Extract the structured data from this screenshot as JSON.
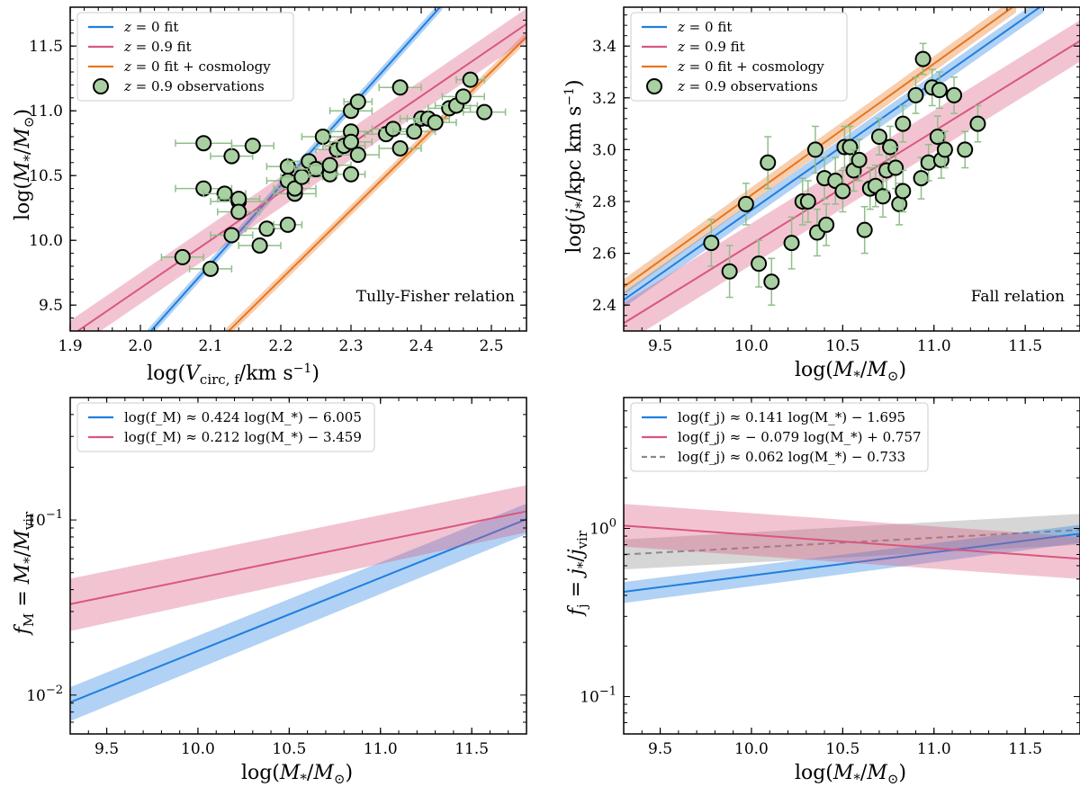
{
  "colors": {
    "blue": "#1f7fe0",
    "pink": "#d9577f",
    "orange": "#e8761c",
    "gray": "#8a8a8a",
    "marker_face": "#a9d0a2",
    "errorbar": "#8fbf8a"
  },
  "chart_data": [
    {
      "id": "tf",
      "type": "scatter",
      "title": "",
      "annotation": "Tully-Fisher relation",
      "xlabel": "log(V_circ,f / km s^-1)",
      "ylabel": "log(M_* / M_sun)",
      "xlim": [
        1.9,
        2.55
      ],
      "ylim": [
        9.3,
        11.8
      ],
      "yscale": "linear",
      "xticks": [
        1.9,
        2.0,
        2.1,
        2.2,
        2.3,
        2.4,
        2.5
      ],
      "xtick_labels": [
        "1.9",
        "2.0",
        "2.1",
        "2.2",
        "2.3",
        "2.4",
        "2.5"
      ],
      "yticks": [
        9.5,
        10.0,
        10.5,
        11.0,
        11.5
      ],
      "ytick_labels": [
        "9.5",
        "10.0",
        "10.5",
        "11.0",
        "11.5"
      ],
      "legend_position": "top-left",
      "legend": [
        {
          "type": "line",
          "color": "blue",
          "label": "z = 0 fit"
        },
        {
          "type": "line",
          "color": "pink",
          "label": "z = 0.9 fit"
        },
        {
          "type": "line",
          "color": "orange",
          "label": "z = 0 fit + cosmology"
        },
        {
          "type": "marker",
          "label": "z = 0.9 observations"
        }
      ],
      "series": [
        {
          "name": "z = 0 fit + cosmology",
          "color": "orange",
          "x": [
            2.12,
            2.55
          ],
          "y": [
            9.27,
            11.57
          ],
          "band": 0.04
        },
        {
          "name": "z = 0 fit",
          "color": "blue",
          "x": [
            2.01,
            2.43
          ],
          "y": [
            9.27,
            11.82
          ],
          "band": 0.04
        },
        {
          "name": "z = 0.9 fit",
          "color": "pink",
          "x": [
            1.9,
            2.55
          ],
          "y": [
            9.26,
            11.67
          ],
          "band": 0.12
        }
      ],
      "points": [
        [
          2.06,
          9.87,
          0.03
        ],
        [
          2.1,
          9.78,
          0.03
        ],
        [
          2.09,
          10.75,
          0.04
        ],
        [
          2.09,
          10.4,
          0.04
        ],
        [
          2.12,
          10.36,
          0.03
        ],
        [
          2.13,
          10.04,
          0.03
        ],
        [
          2.13,
          10.65,
          0.03
        ],
        [
          2.14,
          10.3,
          0.04
        ],
        [
          2.14,
          10.32,
          0.03
        ],
        [
          2.14,
          10.22,
          0.03
        ],
        [
          2.16,
          10.73,
          0.03
        ],
        [
          2.17,
          9.96,
          0.03
        ],
        [
          2.18,
          10.09,
          0.03
        ],
        [
          2.21,
          10.12,
          0.02
        ],
        [
          2.21,
          10.46,
          0.03
        ],
        [
          2.21,
          10.57,
          0.03
        ],
        [
          2.22,
          10.36,
          0.03
        ],
        [
          2.22,
          10.4,
          0.03
        ],
        [
          2.23,
          10.49,
          0.03
        ],
        [
          2.24,
          10.61,
          0.03
        ],
        [
          2.25,
          10.55,
          0.03
        ],
        [
          2.26,
          10.8,
          0.03
        ],
        [
          2.27,
          10.51,
          0.03
        ],
        [
          2.27,
          10.58,
          0.03
        ],
        [
          2.28,
          10.7,
          0.03
        ],
        [
          2.29,
          10.73,
          0.03
        ],
        [
          2.3,
          11.0,
          0.03
        ],
        [
          2.3,
          10.84,
          0.03
        ],
        [
          2.3,
          10.51,
          0.02
        ],
        [
          2.3,
          10.76,
          0.03
        ],
        [
          2.31,
          11.07,
          0.02
        ],
        [
          2.31,
          10.66,
          0.03
        ],
        [
          2.35,
          10.82,
          0.03
        ],
        [
          2.36,
          10.86,
          0.03
        ],
        [
          2.37,
          11.18,
          0.03
        ],
        [
          2.37,
          10.71,
          0.03
        ],
        [
          2.39,
          10.84,
          0.03
        ],
        [
          2.4,
          10.94,
          0.03
        ],
        [
          2.41,
          10.94,
          0.03
        ],
        [
          2.42,
          10.91,
          0.03
        ],
        [
          2.44,
          11.02,
          0.03
        ],
        [
          2.45,
          11.04,
          0.03
        ],
        [
          2.46,
          11.11,
          0.03
        ],
        [
          2.47,
          11.24,
          0.02
        ],
        [
          2.49,
          10.99,
          0.03
        ]
      ]
    },
    {
      "id": "fall",
      "type": "scatter",
      "title": "",
      "annotation": "Fall relation",
      "xlabel": "log(M_* / M_sun)",
      "ylabel": "log(j_* / kpc km s^-1)",
      "xlim": [
        9.3,
        11.8
      ],
      "ylim": [
        2.3,
        3.55
      ],
      "yscale": "linear",
      "xticks": [
        9.5,
        10.0,
        10.5,
        11.0,
        11.5
      ],
      "xtick_labels": [
        "9.5",
        "10.0",
        "10.5",
        "11.0",
        "11.5"
      ],
      "yticks": [
        2.4,
        2.6,
        2.8,
        3.0,
        3.2,
        3.4
      ],
      "ytick_labels": [
        "2.4",
        "2.6",
        "2.8",
        "3.0",
        "3.2",
        "3.4"
      ],
      "legend_position": "top-left",
      "legend": [
        {
          "type": "line",
          "color": "blue",
          "label": "z = 0 fit"
        },
        {
          "type": "line",
          "color": "pink",
          "label": "z = 0.9 fit"
        },
        {
          "type": "line",
          "color": "orange",
          "label": "z = 0 fit + cosmology"
        },
        {
          "type": "marker",
          "label": "z = 0.9 observations"
        }
      ],
      "series": [
        {
          "name": "z = 0 fit + cosmology",
          "color": "orange",
          "x": [
            9.3,
            11.45
          ],
          "y": [
            2.47,
            3.56
          ],
          "band": 0.03
        },
        {
          "name": "z = 0 fit",
          "color": "blue",
          "x": [
            9.3,
            11.6
          ],
          "y": [
            2.42,
            3.56
          ],
          "band": 0.03
        },
        {
          "name": "z = 0.9 fit",
          "color": "pink",
          "x": [
            9.3,
            11.8
          ],
          "y": [
            2.33,
            3.42
          ],
          "band": 0.08
        }
      ],
      "points": [
        [
          9.78,
          2.64,
          0.09
        ],
        [
          9.88,
          2.53,
          0.1
        ],
        [
          9.97,
          2.79,
          0.08
        ],
        [
          10.04,
          2.56,
          0.09
        ],
        [
          10.09,
          2.95,
          0.1
        ],
        [
          10.11,
          2.49,
          0.09
        ],
        [
          10.22,
          2.64,
          0.1
        ],
        [
          10.28,
          2.8,
          0.09
        ],
        [
          10.31,
          2.8,
          0.08
        ],
        [
          10.35,
          3.0,
          0.09
        ],
        [
          10.36,
          2.68,
          0.09
        ],
        [
          10.4,
          2.89,
          0.08
        ],
        [
          10.41,
          2.71,
          0.08
        ],
        [
          10.46,
          2.88,
          0.09
        ],
        [
          10.5,
          2.84,
          0.08
        ],
        [
          10.51,
          3.01,
          0.08
        ],
        [
          10.54,
          3.01,
          0.08
        ],
        [
          10.56,
          2.92,
          0.08
        ],
        [
          10.59,
          2.96,
          0.08
        ],
        [
          10.62,
          2.69,
          0.09
        ],
        [
          10.65,
          2.85,
          0.08
        ],
        [
          10.68,
          2.86,
          0.08
        ],
        [
          10.7,
          3.05,
          0.07
        ],
        [
          10.72,
          2.82,
          0.08
        ],
        [
          10.74,
          2.92,
          0.08
        ],
        [
          10.76,
          3.01,
          0.08
        ],
        [
          10.79,
          2.93,
          0.08
        ],
        [
          10.81,
          2.79,
          0.08
        ],
        [
          10.83,
          2.84,
          0.08
        ],
        [
          10.83,
          3.1,
          0.07
        ],
        [
          10.9,
          3.21,
          0.07
        ],
        [
          10.94,
          3.35,
          0.06
        ],
        [
          10.93,
          2.89,
          0.08
        ],
        [
          10.97,
          2.95,
          0.07
        ],
        [
          10.99,
          3.24,
          0.07
        ],
        [
          11.02,
          3.05,
          0.08
        ],
        [
          11.03,
          3.23,
          0.07
        ],
        [
          11.04,
          2.96,
          0.07
        ],
        [
          11.06,
          3.0,
          0.07
        ],
        [
          11.11,
          3.21,
          0.07
        ],
        [
          11.17,
          3.0,
          0.07
        ],
        [
          11.24,
          3.1,
          0.07
        ]
      ]
    },
    {
      "id": "fm",
      "type": "line",
      "title": "",
      "xlabel": "log(M_* / M_sun)",
      "ylabel": "f_M = M_* / M_vir",
      "xlim": [
        9.3,
        11.8
      ],
      "ylim": [
        0.006,
        0.5
      ],
      "yscale": "log",
      "xticks": [
        9.5,
        10.0,
        10.5,
        11.0,
        11.5
      ],
      "xtick_labels": [
        "9.5",
        "10.0",
        "10.5",
        "11.0",
        "11.5"
      ],
      "yticks": [
        0.01,
        0.1
      ],
      "ytick_labels": [
        "10^-2",
        "10^-1"
      ],
      "legend_position": "top-left",
      "legend": [
        {
          "type": "line",
          "color": "blue",
          "label": "log(f_M) ≈ 0.424 log(M_*) − 6.005"
        },
        {
          "type": "line",
          "color": "pink",
          "label": "log(f_M) ≈ 0.212 log(M_*) − 3.459"
        }
      ],
      "series": [
        {
          "name": "blue fit",
          "color": "blue",
          "x": [
            9.3,
            11.8
          ],
          "y": [
            0.0091,
            0.101
          ],
          "band_lo": [
            0.0071,
            0.083
          ],
          "band_hi": [
            0.0111,
            0.124
          ]
        },
        {
          "name": "pink fit",
          "color": "pink",
          "x": [
            9.3,
            11.8
          ],
          "y": [
            0.0331,
            0.112
          ],
          "band_lo": [
            0.0232,
            0.085
          ],
          "band_hi": [
            0.0462,
            0.158
          ]
        }
      ]
    },
    {
      "id": "fj",
      "type": "line",
      "title": "",
      "xlabel": "log(M_* / M_sun)",
      "ylabel": "f_j = j_* / j_vir",
      "xlim": [
        9.3,
        11.8
      ],
      "ylim": [
        0.06,
        6.0
      ],
      "yscale": "log",
      "xticks": [
        9.5,
        10.0,
        10.5,
        11.0,
        11.5
      ],
      "xtick_labels": [
        "9.5",
        "10.0",
        "10.5",
        "11.0",
        "11.5"
      ],
      "yticks": [
        0.1,
        1.0
      ],
      "ytick_labels": [
        "10^-1",
        "10^0"
      ],
      "legend_position": "top-left",
      "legend": [
        {
          "type": "line",
          "color": "blue",
          "label": "log(f_j) ≈ 0.141 log(M_*) − 1.695"
        },
        {
          "type": "line",
          "color": "pink",
          "label": "log(f_j) ≈ − 0.079 log(M_*) + 0.757"
        },
        {
          "type": "dash",
          "color": "gray",
          "label": "log(f_j) ≈ 0.062 log(M_*) − 0.733"
        }
      ],
      "series": [
        {
          "name": "gray fit",
          "color": "gray",
          "dashed": true,
          "x": [
            9.3,
            11.8
          ],
          "y": [
            0.7,
            0.98
          ],
          "band_lo": [
            0.57,
            0.8
          ],
          "band_hi": [
            0.86,
            1.22
          ]
        },
        {
          "name": "blue fit",
          "color": "blue",
          "x": [
            9.3,
            11.8
          ],
          "y": [
            0.42,
            0.93
          ],
          "band_lo": [
            0.36,
            0.82
          ],
          "band_hi": [
            0.48,
            1.05
          ]
        },
        {
          "name": "pink fit",
          "color": "pink",
          "x": [
            9.3,
            11.8
          ],
          "y": [
            1.04,
            0.66
          ],
          "band_lo": [
            0.78,
            0.5
          ],
          "band_hi": [
            1.4,
            0.89
          ]
        }
      ]
    }
  ]
}
